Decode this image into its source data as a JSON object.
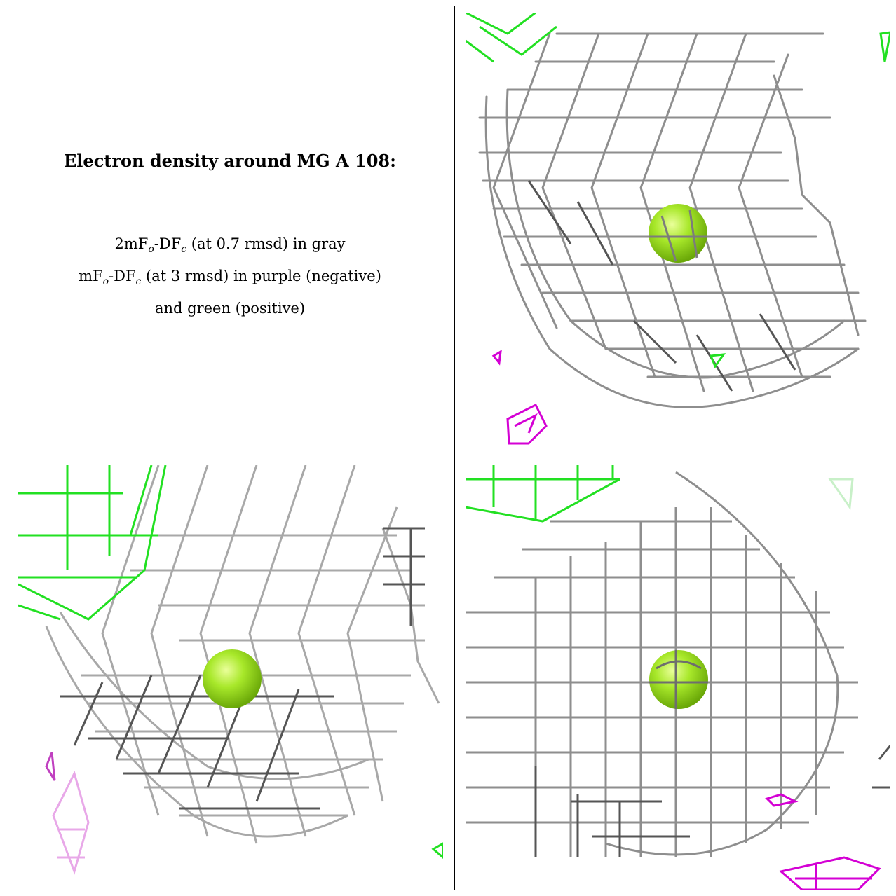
{
  "legend": {
    "title": "Electron density around MG A 108:",
    "line1_a": "2mF",
    "line1_b": "o",
    "line1_c": "-DF",
    "line1_d": "c",
    "line1_e": " (at 0.7 rmsd) in gray",
    "line2_a": "mF",
    "line2_b": "o",
    "line2_c": "-DF",
    "line2_d": "c",
    "line2_e": " (at 3 rmsd) in purple (negative)",
    "line3": "and green (positive)"
  },
  "colors": {
    "mesh_gray": "#9a9a9a",
    "mesh_dark": "#5a5a5a",
    "positive_green": "#22e022",
    "negative_purple": "#d400d4",
    "atom_mg": "#9be31c"
  },
  "panels": [
    {
      "name": "view-top-right",
      "atom": "MG"
    },
    {
      "name": "view-bottom-left",
      "atom": "MG"
    },
    {
      "name": "view-bottom-right",
      "atom": "MG"
    }
  ]
}
